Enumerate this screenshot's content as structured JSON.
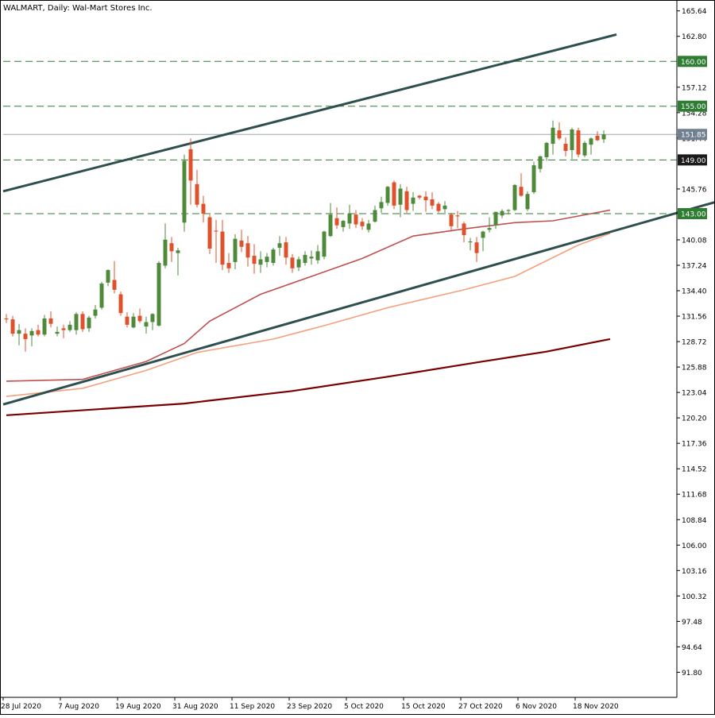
{
  "chart_data": {
    "type": "candlestick",
    "title": "WALMART, Daily:  Wal-Mart Stores Inc.",
    "x_tick_labels": [
      "28 Jul 2020",
      "7 Aug 2020",
      "19 Aug 2020",
      "31 Aug 2020",
      "11 Sep 2020",
      "23 Sep 2020",
      "5 Oct 2020",
      "15 Oct 2020",
      "27 Oct 2020",
      "6 Nov 2020",
      "18 Nov 2020"
    ],
    "y_tick_labels": [
      "165.64",
      "162.80",
      "157.12",
      "154.28",
      "151.44",
      "145.76",
      "140.08",
      "137.24",
      "134.40",
      "131.56",
      "128.72",
      "125.88",
      "123.04",
      "120.20",
      "117.36",
      "114.52",
      "111.68",
      "108.84",
      "106.00",
      "103.16",
      "100.32",
      "97.48",
      "94.64",
      "91.80"
    ],
    "ylim": [
      89.0,
      166.5
    ],
    "grid": false,
    "current_price": {
      "value": 151.85,
      "label": "151.85",
      "color": "#708090"
    },
    "horizontal_levels": [
      {
        "value": 160.0,
        "label": "160.00",
        "color": "#2e7d32",
        "style": "dashed"
      },
      {
        "value": 155.0,
        "label": "155.00",
        "color": "#2e7d32",
        "style": "dashed"
      },
      {
        "value": 149.0,
        "label": "149.00",
        "color": "#2e7d32",
        "style": "dashed"
      },
      {
        "value": 143.0,
        "label": "143.00",
        "color": "#2e7d32",
        "style": "dashed"
      }
    ],
    "colors": {
      "up": "#4e8a3a",
      "down": "#e0502a",
      "trendline": "#2f4f4f",
      "axis": "#000000"
    },
    "candles": [
      [
        131.3,
        131.8,
        130.8,
        131.2
      ],
      [
        131.2,
        131.6,
        129.3,
        129.6
      ],
      [
        129.6,
        130.7,
        128.3,
        130.0
      ],
      [
        129.6,
        130.2,
        127.6,
        129.0
      ],
      [
        129.4,
        130.2,
        128.2,
        129.9
      ],
      [
        130.0,
        130.6,
        129.3,
        129.5
      ],
      [
        129.5,
        131.7,
        129.3,
        131.3
      ],
      [
        131.3,
        132.1,
        130.3,
        130.7
      ],
      [
        129.6,
        130.4,
        129.3,
        129.8
      ],
      [
        130.2,
        130.6,
        129.1,
        130.0
      ],
      [
        130.0,
        131.0,
        129.8,
        130.6
      ],
      [
        130.0,
        132.0,
        129.5,
        131.8
      ],
      [
        131.8,
        132.1,
        129.8,
        130.1
      ],
      [
        130.2,
        131.6,
        129.8,
        131.4
      ],
      [
        131.6,
        132.8,
        131.3,
        132.3
      ],
      [
        132.5,
        135.4,
        132.3,
        135.2
      ],
      [
        135.3,
        136.8,
        134.9,
        136.7
      ],
      [
        135.6,
        137.7,
        134.1,
        134.5
      ],
      [
        134.0,
        134.3,
        131.6,
        131.9
      ],
      [
        131.5,
        132.0,
        130.3,
        130.6
      ],
      [
        130.3,
        131.9,
        130.2,
        131.5
      ],
      [
        131.6,
        132.4,
        130.8,
        131.0
      ],
      [
        130.4,
        131.5,
        129.6,
        130.9
      ],
      [
        130.9,
        131.9,
        130.0,
        131.8
      ],
      [
        130.5,
        137.7,
        130.4,
        137.5
      ],
      [
        137.2,
        141.9,
        136.9,
        140.1
      ],
      [
        139.7,
        140.4,
        137.6,
        138.8
      ],
      [
        138.6,
        139.2,
        136.1,
        138.9
      ],
      [
        142.0,
        149.6,
        141.0,
        148.9
      ],
      [
        150.2,
        151.4,
        144.0,
        146.7
      ],
      [
        146.3,
        147.9,
        143.7,
        144.0
      ],
      [
        144.1,
        145.0,
        142.0,
        143.0
      ],
      [
        142.6,
        142.9,
        138.5,
        139.1
      ],
      [
        141.1,
        142.3,
        137.5,
        141.0
      ],
      [
        141.0,
        142.3,
        136.7,
        137.3
      ],
      [
        137.5,
        138.6,
        136.4,
        136.9
      ],
      [
        137.6,
        140.7,
        136.8,
        140.2
      ],
      [
        140.0,
        141.2,
        138.7,
        139.3
      ],
      [
        139.7,
        140.5,
        137.1,
        138.1
      ],
      [
        138.3,
        139.6,
        136.3,
        137.4
      ],
      [
        137.3,
        138.8,
        136.4,
        137.9
      ],
      [
        137.6,
        138.6,
        137.0,
        138.2
      ],
      [
        137.5,
        139.2,
        137.2,
        139.0
      ],
      [
        139.2,
        140.5,
        138.3,
        139.7
      ],
      [
        139.8,
        140.4,
        137.3,
        138.1
      ],
      [
        138.1,
        138.5,
        136.4,
        136.9
      ],
      [
        137.0,
        138.2,
        136.6,
        137.9
      ],
      [
        137.5,
        138.8,
        137.2,
        138.4
      ],
      [
        138.0,
        138.9,
        137.3,
        138.2
      ],
      [
        137.8,
        139.5,
        137.4,
        138.8
      ],
      [
        138.2,
        141.1,
        137.9,
        141.0
      ],
      [
        140.5,
        144.2,
        140.4,
        142.9
      ],
      [
        142.5,
        143.7,
        141.3,
        141.7
      ],
      [
        141.5,
        142.3,
        141.0,
        142.2
      ],
      [
        141.9,
        144.0,
        141.3,
        143.0
      ],
      [
        142.9,
        143.4,
        141.4,
        141.8
      ],
      [
        142.1,
        142.5,
        141.2,
        141.6
      ],
      [
        141.2,
        142.3,
        140.9,
        141.9
      ],
      [
        142.1,
        143.9,
        142.0,
        143.4
      ],
      [
        143.6,
        144.9,
        143.1,
        144.3
      ],
      [
        144.2,
        146.1,
        143.9,
        146.0
      ],
      [
        146.5,
        146.7,
        143.5,
        143.9
      ],
      [
        144.0,
        146.3,
        142.6,
        145.8
      ],
      [
        145.5,
        146.0,
        143.1,
        143.4
      ],
      [
        144.1,
        145.4,
        143.3,
        144.8
      ],
      [
        145.0,
        145.1,
        144.6,
        144.8
      ],
      [
        144.9,
        145.5,
        143.2,
        144.5
      ],
      [
        144.6,
        145.4,
        143.5,
        143.9
      ],
      [
        144.1,
        144.3,
        143.1,
        143.3
      ],
      [
        143.5,
        144.4,
        142.9,
        143.9
      ],
      [
        142.9,
        143.1,
        141.0,
        141.6
      ],
      [
        142.8,
        143.3,
        141.4,
        142.7
      ],
      [
        141.9,
        142.1,
        139.8,
        140.6
      ],
      [
        139.8,
        140.3,
        138.9,
        139.9
      ],
      [
        139.8,
        140.4,
        137.6,
        138.6
      ],
      [
        140.3,
        141.1,
        138.8,
        141.0
      ],
      [
        141.2,
        142.6,
        140.9,
        141.4
      ],
      [
        141.7,
        143.2,
        141.3,
        143.2
      ],
      [
        142.8,
        143.5,
        142.5,
        143.3
      ],
      [
        143.3,
        143.5,
        142.9,
        143.4
      ],
      [
        143.4,
        146.3,
        143.3,
        146.2
      ],
      [
        146.0,
        147.5,
        144.9,
        145.0
      ],
      [
        143.5,
        145.5,
        143.3,
        145.2
      ],
      [
        145.4,
        148.8,
        145.2,
        148.4
      ],
      [
        148.0,
        149.5,
        147.6,
        149.4
      ],
      [
        149.3,
        151.0,
        148.9,
        150.9
      ],
      [
        150.8,
        153.4,
        149.6,
        152.6
      ],
      [
        152.3,
        153.2,
        151.2,
        151.4
      ],
      [
        150.8,
        151.5,
        149.4,
        150.0
      ],
      [
        150.1,
        152.6,
        149.1,
        152.4
      ],
      [
        152.3,
        152.6,
        149.3,
        149.6
      ],
      [
        149.5,
        151.1,
        149.3,
        150.9
      ],
      [
        150.7,
        151.5,
        149.6,
        151.4
      ],
      [
        151.7,
        152.2,
        151.1,
        151.2
      ],
      [
        151.3,
        152.3,
        150.9,
        151.85
      ]
    ],
    "moving_averages": [
      {
        "period": 50,
        "color": "#c05050",
        "values": [
          [
            0,
            124.3
          ],
          [
            12,
            124.5
          ],
          [
            22,
            126.5
          ],
          [
            28,
            128.5
          ],
          [
            32,
            131.0
          ],
          [
            40,
            134.0
          ],
          [
            48,
            136.0
          ],
          [
            56,
            138.0
          ],
          [
            64,
            140.5
          ],
          [
            72,
            141.3
          ],
          [
            80,
            142.0
          ],
          [
            86,
            142.2
          ],
          [
            92,
            143.0
          ],
          [
            95,
            143.4
          ]
        ]
      },
      {
        "period": 100,
        "color": "#f4a07a",
        "values": [
          [
            0,
            122.6
          ],
          [
            12,
            123.5
          ],
          [
            22,
            125.5
          ],
          [
            30,
            127.5
          ],
          [
            42,
            129.0
          ],
          [
            50,
            130.5
          ],
          [
            60,
            132.5
          ],
          [
            72,
            134.5
          ],
          [
            80,
            136.0
          ],
          [
            90,
            139.5
          ],
          [
            95,
            140.8
          ]
        ]
      },
      {
        "period": 200,
        "color": "#7a0000",
        "values": [
          [
            0,
            120.5
          ],
          [
            28,
            121.8
          ],
          [
            45,
            123.2
          ],
          [
            60,
            124.8
          ],
          [
            75,
            126.5
          ],
          [
            85,
            127.6
          ],
          [
            95,
            129.0
          ]
        ]
      }
    ],
    "trendlines": [
      {
        "name": "upper-channel",
        "start": [
          0,
          145.5
        ],
        "end": [
          96,
          163.0
        ]
      },
      {
        "name": "lower-channel",
        "start": [
          0,
          121.7
        ],
        "end": [
          120,
          146.0
        ]
      }
    ]
  }
}
